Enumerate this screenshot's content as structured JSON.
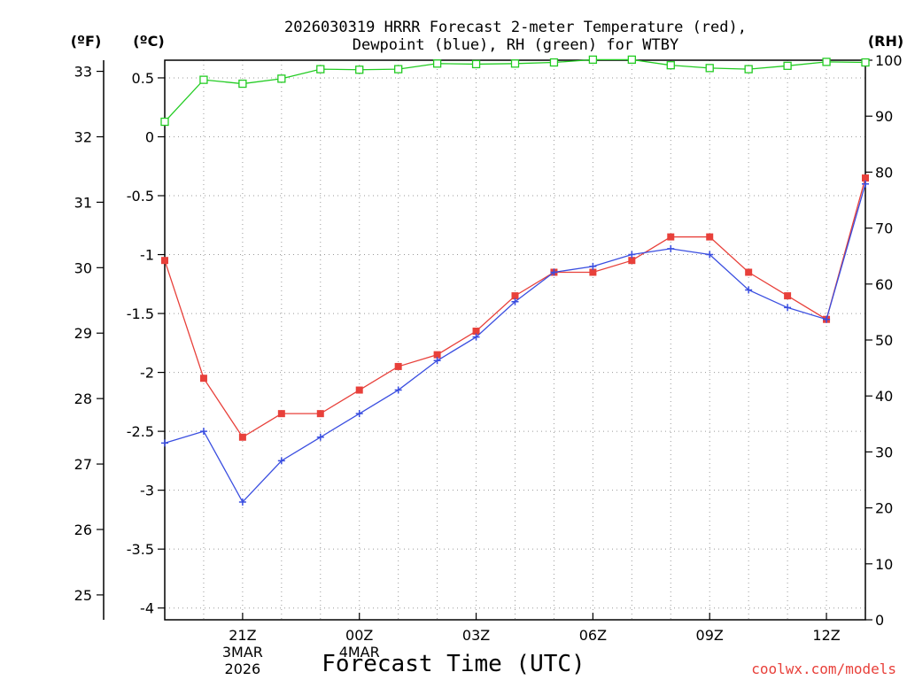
{
  "header": {
    "title_line1": "2026030319 HRRR Forecast 2-meter Temperature (red),",
    "title_line2": "Dewpoint (blue), RH (green) for WTBY",
    "unit_f": "(ºF)",
    "unit_c": "(ºC)",
    "unit_rh": "(RH)"
  },
  "footer": {
    "xlabel": "Forecast Time (UTC)",
    "credit": "coolwx.com/models"
  },
  "colors": {
    "temperature": "#e8403a",
    "dewpoint": "#3a4ee0",
    "rh": "#22cc22",
    "grid": "#9a9a9a"
  },
  "chart_data": {
    "type": "line",
    "title": "2026030319 HRRR Forecast 2-meter Temperature (red), Dewpoint (blue), RH (green) for WTBY",
    "xlabel": "Forecast Time (UTC)",
    "x": [
      0,
      1,
      2,
      3,
      4,
      5,
      6,
      7,
      8,
      9,
      10,
      11,
      12,
      13,
      14,
      15,
      16,
      17,
      18
    ],
    "x_hours_after_start": "hour 0 = 2026-03-03 19Z",
    "xlim": [
      0,
      18
    ],
    "x_ticks": [
      {
        "x": 2,
        "label": "21Z",
        "sub1": "3MAR",
        "sub2": "2026"
      },
      {
        "x": 5,
        "label": "00Z",
        "sub1": "4MAR",
        "sub2": ""
      },
      {
        "x": 8,
        "label": "03Z",
        "sub1": "",
        "sub2": ""
      },
      {
        "x": 11,
        "label": "06Z",
        "sub1": "",
        "sub2": ""
      },
      {
        "x": 14,
        "label": "09Z",
        "sub1": "",
        "sub2": ""
      },
      {
        "x": 17,
        "label": "12Z",
        "sub1": "",
        "sub2": ""
      }
    ],
    "c_axis": {
      "min": -4.1,
      "max": 0.65,
      "ticks": [
        "0.5",
        "0",
        "-0.5",
        "-1",
        "-1.5",
        "-2",
        "-2.5",
        "-3",
        "-3.5",
        "-4"
      ]
    },
    "f_axis": {
      "ticks": [
        "33",
        "32",
        "31",
        "30",
        "29",
        "28",
        "27",
        "26",
        "25"
      ]
    },
    "rh_axis": {
      "min": 0,
      "max": 100,
      "ticks": [
        "100",
        "90",
        "80",
        "70",
        "60",
        "50",
        "40",
        "30",
        "20",
        "10",
        "0"
      ]
    },
    "series": [
      {
        "name": "Temperature (°C)",
        "axis": "c",
        "marker": "square",
        "values": [
          -1.05,
          -2.05,
          -2.55,
          -2.35,
          -2.35,
          -2.15,
          -1.95,
          -1.85,
          -1.65,
          -1.35,
          -1.15,
          -1.15,
          -1.05,
          -0.85,
          -0.85,
          -1.15,
          -1.35,
          -1.55,
          -0.35
        ]
      },
      {
        "name": "Dewpoint (°C)",
        "axis": "c",
        "marker": "plus",
        "values": [
          -2.6,
          -2.5,
          -3.1,
          -2.75,
          -2.55,
          -2.35,
          -2.15,
          -1.9,
          -1.7,
          -1.4,
          -1.15,
          -1.1,
          -1.0,
          -0.95,
          -1.0,
          -1.3,
          -1.45,
          -1.55,
          -0.4
        ]
      },
      {
        "name": "RH (%)",
        "axis": "rh",
        "marker": "open-square",
        "values": [
          89,
          96.5,
          95.8,
          96.7,
          98.4,
          98.3,
          98.4,
          99.4,
          99.3,
          99.4,
          99.6,
          100.1,
          100.1,
          99.1,
          98.6,
          98.4,
          99.0,
          99.7,
          99.6
        ]
      }
    ]
  }
}
